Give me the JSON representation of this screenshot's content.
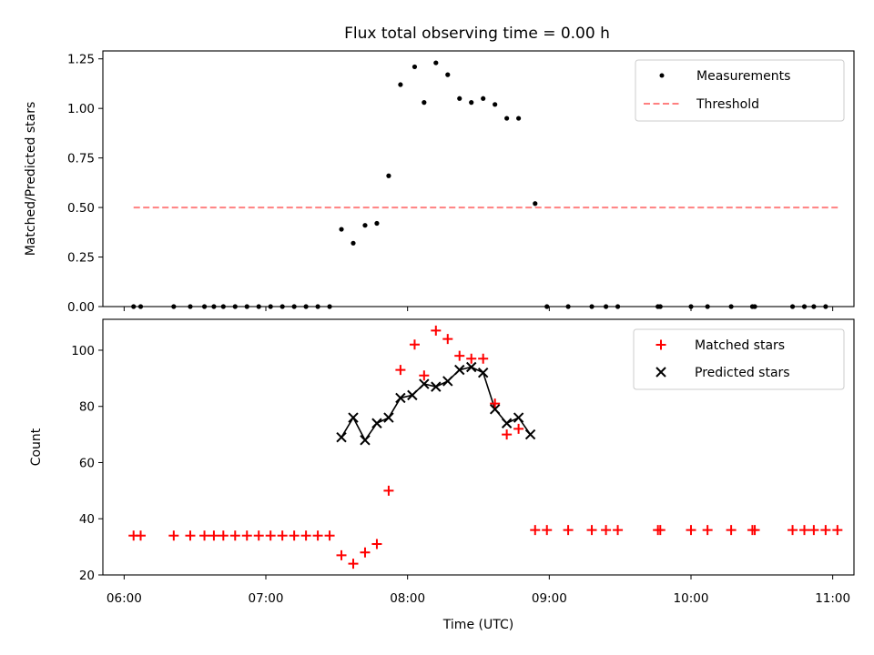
{
  "chart_data": [
    {
      "type": "scatter",
      "title": "Flux total observing time = 0.00 h",
      "ylabel": "Matched/Predicted stars",
      "ylim": [
        0,
        1.29
      ],
      "yticks": [
        0,
        0.25,
        0.5,
        0.75,
        1.0,
        1.25
      ],
      "ytick_labels": [
        "0.00",
        "0.25",
        "0.50",
        "0.75",
        "1.00",
        "1.25"
      ],
      "xlim": [
        "05:51",
        "11:09"
      ],
      "legend_position": "top-right",
      "series": [
        {
          "name": "Measurements",
          "marker": "dot",
          "color": "#000000",
          "x": [
            "06:04",
            "06:07",
            "06:21",
            "06:28",
            "06:34",
            "06:38",
            "06:42",
            "06:47",
            "06:52",
            "06:57",
            "07:02",
            "07:07",
            "07:12",
            "07:17",
            "07:22",
            "07:27",
            "07:32",
            "07:37",
            "07:42",
            "07:47",
            "07:52",
            "07:57",
            "08:03",
            "08:07",
            "08:12",
            "08:17",
            "08:22",
            "08:27",
            "08:32",
            "08:37",
            "08:42",
            "08:47",
            "08:54",
            "08:59",
            "09:08",
            "09:18",
            "09:24",
            "09:29",
            "09:46",
            "09:47",
            "10:00",
            "10:07",
            "10:17",
            "10:26",
            "10:27",
            "10:43",
            "10:48",
            "10:52",
            "10:57"
          ],
          "y": [
            0,
            0,
            0,
            0,
            0,
            0,
            0,
            0,
            0,
            0,
            0,
            0,
            0,
            0,
            0,
            0,
            0.39,
            0.32,
            0.41,
            0.42,
            0.66,
            1.12,
            1.21,
            1.03,
            1.23,
            1.17,
            1.05,
            1.03,
            1.05,
            1.02,
            0.95,
            0.95,
            0.52,
            0,
            0,
            0,
            0,
            0,
            0,
            0,
            0,
            0,
            0,
            0,
            0,
            0,
            0,
            0,
            0
          ]
        },
        {
          "name": "Threshold",
          "style": "dashed",
          "color": "#ff8080",
          "x": [
            "06:04",
            "11:03"
          ],
          "y": [
            0.5,
            0.5
          ]
        }
      ]
    },
    {
      "type": "scatter",
      "xlabel": "Time (UTC)",
      "ylabel": "Count",
      "ylim": [
        20,
        111
      ],
      "yticks": [
        20,
        40,
        60,
        80,
        100
      ],
      "xlim": [
        "05:51",
        "11:09"
      ],
      "xticks": [
        "06:00",
        "07:00",
        "08:00",
        "09:00",
        "10:00",
        "11:00"
      ],
      "legend_position": "top-right",
      "series": [
        {
          "name": "Matched stars",
          "marker": "plus",
          "color": "#ff0000",
          "x": [
            "06:04",
            "06:07",
            "06:21",
            "06:28",
            "06:34",
            "06:38",
            "06:42",
            "06:47",
            "06:52",
            "06:57",
            "07:02",
            "07:07",
            "07:12",
            "07:17",
            "07:22",
            "07:27",
            "07:32",
            "07:37",
            "07:42",
            "07:47",
            "07:52",
            "07:57",
            "08:03",
            "08:07",
            "08:12",
            "08:17",
            "08:22",
            "08:27",
            "08:32",
            "08:37",
            "08:42",
            "08:47",
            "08:54",
            "08:59",
            "09:08",
            "09:18",
            "09:24",
            "09:29",
            "09:46",
            "09:47",
            "10:00",
            "10:07",
            "10:17",
            "10:26",
            "10:27",
            "10:43",
            "10:48",
            "10:52",
            "10:57",
            "11:02"
          ],
          "y": [
            34,
            34,
            34,
            34,
            34,
            34,
            34,
            34,
            34,
            34,
            34,
            34,
            34,
            34,
            34,
            34,
            27,
            24,
            28,
            31,
            50,
            93,
            102,
            91,
            107,
            104,
            98,
            97,
            97,
            81,
            70,
            72,
            36,
            36,
            36,
            36,
            36,
            36,
            36,
            36,
            36,
            36,
            36,
            36,
            36,
            36,
            36,
            36,
            36,
            36
          ]
        },
        {
          "name": "Predicted stars",
          "marker": "x",
          "color": "#000000",
          "x": [
            "07:32",
            "07:37",
            "07:42",
            "07:47",
            "07:52",
            "07:57",
            "08:02",
            "08:07",
            "08:12",
            "08:17",
            "08:22",
            "08:27",
            "08:32",
            "08:37",
            "08:42",
            "08:47",
            "08:52"
          ],
          "y": [
            69,
            76,
            68,
            74,
            76,
            83,
            84,
            88,
            87,
            89,
            93,
            94,
            92,
            79,
            74,
            76,
            70
          ]
        }
      ]
    }
  ]
}
